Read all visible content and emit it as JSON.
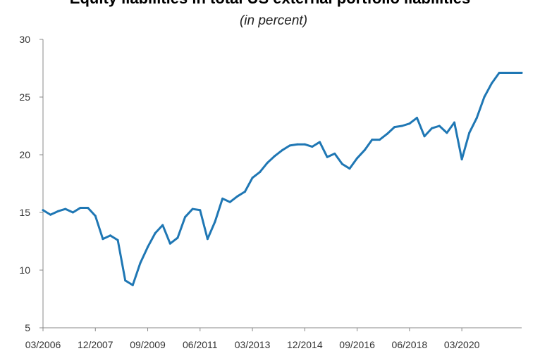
{
  "chart_data": {
    "type": "line",
    "title": "Equity liabilities in total US external portfolio liabilities",
    "subtitle": "(in percent)",
    "xlabel": "",
    "ylabel": "",
    "ylim": [
      5,
      30
    ],
    "yticks": [
      5,
      10,
      15,
      20,
      25,
      30
    ],
    "xlim": [
      "03/2006",
      "03/2022"
    ],
    "xtick_labels": [
      "03/2006",
      "12/2007",
      "09/2009",
      "06/2011",
      "03/2013",
      "12/2014",
      "09/2016",
      "06/2018",
      "03/2020"
    ],
    "grid": false,
    "line_color": "#1f77b4",
    "series": [
      {
        "x": [
          "03/2006",
          "06/2006",
          "09/2006",
          "12/2006",
          "03/2007",
          "06/2007",
          "09/2007",
          "12/2007",
          "03/2008",
          "06/2008",
          "09/2008",
          "12/2008",
          "03/2009",
          "06/2009",
          "09/2009",
          "12/2009",
          "03/2010",
          "06/2010",
          "09/2010",
          "12/2010",
          "03/2011",
          "06/2011",
          "09/2011",
          "12/2011",
          "03/2012",
          "06/2012",
          "09/2012",
          "12/2012",
          "03/2013",
          "06/2013",
          "09/2013",
          "12/2013",
          "03/2014",
          "06/2014",
          "09/2014",
          "12/2014",
          "03/2015",
          "06/2015",
          "09/2015",
          "12/2015",
          "03/2016",
          "06/2016",
          "09/2016",
          "12/2016",
          "03/2017",
          "06/2017",
          "09/2017",
          "12/2017",
          "03/2018",
          "06/2018",
          "09/2018",
          "12/2018",
          "03/2019",
          "06/2019",
          "09/2019",
          "12/2019",
          "03/2020",
          "06/2020",
          "09/2020",
          "12/2020",
          "03/2021",
          "06/2021",
          "09/2021",
          "12/2021",
          "03/2022"
        ],
        "values": [
          15.2,
          14.8,
          15.1,
          15.3,
          15.0,
          15.4,
          15.4,
          14.7,
          12.7,
          13.0,
          12.6,
          9.1,
          8.7,
          10.6,
          12.0,
          13.2,
          13.9,
          12.3,
          12.8,
          14.6,
          15.3,
          15.2,
          12.7,
          14.2,
          16.2,
          15.9,
          16.4,
          16.8,
          18.0,
          18.5,
          19.3,
          19.9,
          20.4,
          20.8,
          20.9,
          20.9,
          20.7,
          21.1,
          19.8,
          20.1,
          19.2,
          18.8,
          19.7,
          20.4,
          21.3,
          21.3,
          21.8,
          22.4,
          22.5,
          22.7,
          23.2,
          21.6,
          22.3,
          22.5,
          21.9,
          22.8,
          19.6,
          21.9,
          23.2,
          25.0,
          26.2,
          27.1,
          27.1,
          27.1,
          27.1
        ]
      }
    ]
  }
}
